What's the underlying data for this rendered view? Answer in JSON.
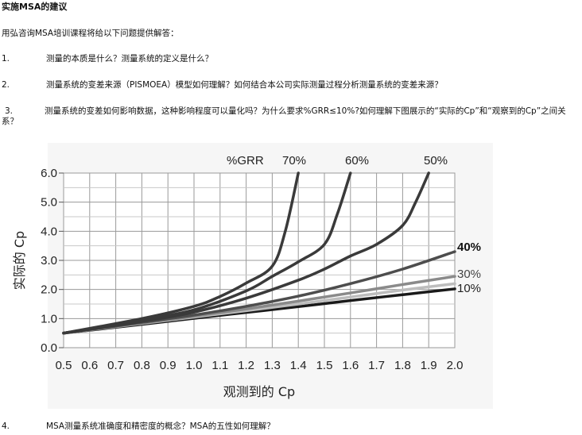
{
  "document": {
    "title": "实施MSA的建议",
    "intro": "用弘咨询MSA培训课程将给以下问题提供解答：",
    "questions": [
      {
        "num": "1.",
        "text": "测量的本质是什么？测量系统的定义是什么？"
      },
      {
        "num": "2.",
        "text": "测量系统的变差来源（PISMOEA）模型如何理解？如何结合本公司实际测量过程分析测量系统的变差来源？"
      },
      {
        "num": "3.",
        "text": "测量系统的变差如何影响数据，这种影响程度可以量化吗？为什么要求%GRR≤10%?如何理解下图展示的“实际的Cp”和“观察到的Cp”之间关系？"
      },
      {
        "num": "4.",
        "text": "MSA测量系统准确度和精密度的概念？MSA的五性如何理解？"
      }
    ]
  },
  "chart_data": {
    "type": "line",
    "title": "%GRR",
    "xlabel": "观测到的 Cp",
    "ylabel": "实际的 Cp",
    "xlim": [
      0.5,
      2.0
    ],
    "ylim": [
      0.0,
      6.0
    ],
    "x_ticks": [
      "0.5",
      "0.6",
      "0.7",
      "0.8",
      "0.9",
      "1.0",
      "1.1",
      "1.2",
      "1.3",
      "1.4",
      "1.5",
      "1.6",
      "1.7",
      "1.8",
      "1.9",
      "2.0"
    ],
    "y_ticks": [
      "0.0",
      "1.0",
      "2.0",
      "3.0",
      "4.0",
      "5.0",
      "6.0"
    ],
    "grid": true,
    "series": [
      {
        "name": "10%",
        "color": "#1a1a1a",
        "labelColor": "#222222",
        "labelBold": false,
        "x": [
          0.5,
          0.8,
          1.0,
          1.2,
          1.4,
          1.6,
          1.8,
          2.0
        ],
        "y": [
          0.5,
          0.8,
          1.01,
          1.21,
          1.41,
          1.62,
          1.82,
          2.02
        ]
      },
      {
        "name": "30%",
        "color": "#bdbdbd",
        "labelColor": "#444444",
        "labelBold": false,
        "x": [
          0.5,
          0.8,
          1.0,
          1.2,
          1.4,
          1.6,
          1.8,
          2.0
        ],
        "y": [
          0.5,
          0.83,
          1.05,
          1.27,
          1.5,
          1.74,
          1.98,
          2.2
        ]
      },
      {
        "name": "",
        "color": "#8a8a8a",
        "labelColor": "#444444",
        "labelBold": false,
        "x": [
          0.5,
          0.8,
          1.0,
          1.2,
          1.4,
          1.6,
          1.8,
          2.0
        ],
        "y": [
          0.5,
          0.85,
          1.08,
          1.33,
          1.6,
          1.88,
          2.17,
          2.45
        ]
      },
      {
        "name": "40%",
        "color": "#4d4d4d",
        "labelColor": "#111111",
        "labelBold": true,
        "x": [
          0.5,
          0.8,
          1.0,
          1.2,
          1.4,
          1.6,
          1.8,
          2.0
        ],
        "y": [
          0.5,
          0.87,
          1.12,
          1.42,
          1.77,
          2.2,
          2.7,
          3.3
        ]
      },
      {
        "name": "50%",
        "color": "#3a3a3a",
        "labelColor": "#222222",
        "labelBold": false,
        "x": [
          0.5,
          0.8,
          1.0,
          1.2,
          1.4,
          1.5,
          1.6,
          1.7,
          1.8,
          1.85,
          1.9
        ],
        "y": [
          0.5,
          0.9,
          1.22,
          1.7,
          2.32,
          2.7,
          3.15,
          3.55,
          4.2,
          5.0,
          6.0
        ]
      },
      {
        "name": "60%",
        "color": "#3a3a3a",
        "labelColor": "#222222",
        "labelBold": false,
        "x": [
          0.5,
          0.8,
          1.0,
          1.2,
          1.3,
          1.4,
          1.5,
          1.55,
          1.6
        ],
        "y": [
          0.5,
          0.95,
          1.3,
          1.95,
          2.45,
          2.95,
          3.55,
          4.6,
          6.0
        ]
      },
      {
        "name": "70%",
        "color": "#3a3a3a",
        "labelColor": "#222222",
        "labelBold": false,
        "x": [
          0.5,
          0.8,
          1.0,
          1.1,
          1.2,
          1.3,
          1.35,
          1.4
        ],
        "y": [
          0.5,
          1.0,
          1.42,
          1.76,
          2.22,
          2.8,
          4.0,
          6.0
        ]
      }
    ]
  }
}
